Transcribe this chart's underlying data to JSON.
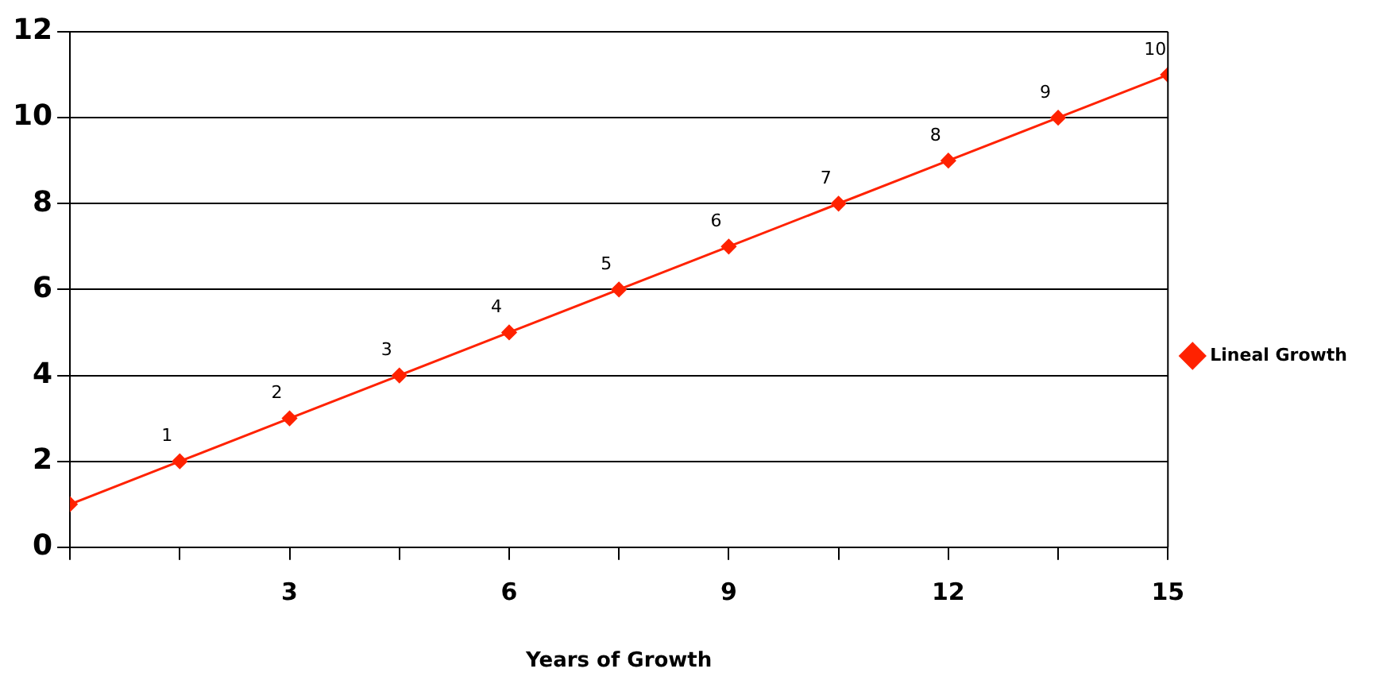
{
  "chart_data": {
    "type": "line",
    "xlabel": "Years of Growth",
    "x": [
      0,
      1.5,
      3,
      4.5,
      6,
      7.5,
      9,
      10.5,
      12,
      13.5,
      15
    ],
    "series": [
      {
        "name": "Lineal Growth",
        "color": "#ff2200",
        "values": [
          1,
          2,
          3,
          4,
          5,
          6,
          7,
          8,
          9,
          10,
          11
        ]
      }
    ],
    "annotations": [
      {
        "text": "1",
        "x": 1.5,
        "y": 2
      },
      {
        "text": "2",
        "x": 3,
        "y": 3
      },
      {
        "text": "3",
        "x": 4.5,
        "y": 4
      },
      {
        "text": "4",
        "x": 6,
        "y": 5
      },
      {
        "text": "5",
        "x": 7.5,
        "y": 6
      },
      {
        "text": "6",
        "x": 9,
        "y": 7
      },
      {
        "text": "7",
        "x": 10.5,
        "y": 8
      },
      {
        "text": "8",
        "x": 12,
        "y": 9
      },
      {
        "text": "9",
        "x": 13.5,
        "y": 10
      },
      {
        "text": "10",
        "x": 15,
        "y": 11
      }
    ],
    "xlim": [
      0,
      15
    ],
    "xticks": [
      {
        "value": 0,
        "label": null
      },
      {
        "value": 1.5,
        "label": null
      },
      3,
      {
        "value": 4.5,
        "label": null
      },
      6,
      {
        "value": 7.5,
        "label": null
      },
      9,
      {
        "value": 10.5,
        "label": null
      },
      12,
      {
        "value": 13.5,
        "label": null
      },
      15
    ],
    "ylim": [
      0,
      12
    ],
    "yticks": [
      0,
      2,
      4,
      6,
      8,
      10,
      12
    ],
    "grid": "y",
    "legend": "right",
    "marker": "diamond",
    "line_style": "solid"
  }
}
